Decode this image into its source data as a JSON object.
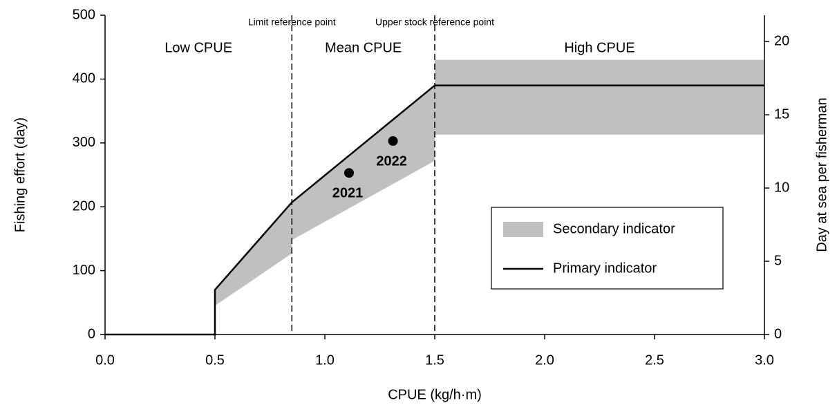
{
  "chart_data": {
    "type": "line",
    "x_label": "CPUE (kg/h·m)",
    "y_label": "Fishing effort (day)",
    "y2_label": "Day at sea per fisherman",
    "xlim": [
      0,
      3.0
    ],
    "xticks": [
      {
        "value": 0,
        "label": "0.0"
      },
      0.5,
      {
        "value": 1,
        "label": "1.0"
      },
      1.5,
      {
        "value": 2,
        "label": "2.0"
      },
      2.5,
      {
        "value": 3,
        "label": "3.0"
      }
    ],
    "ylim": [
      0,
      500
    ],
    "yticks": [
      0,
      100,
      200,
      300,
      400,
      500
    ],
    "y2lim": [
      0,
      21.8
    ],
    "y2ticks": [
      0,
      5,
      10,
      15,
      20
    ],
    "band": {
      "name": "Secondary indicator",
      "color": "#c0c0c0",
      "x": [
        0.5,
        0.85,
        0.85,
        1.5,
        1.5,
        3.0
      ],
      "lower": [
        45,
        127,
        148,
        272,
        313,
        313
      ],
      "upper": [
        70,
        207,
        207,
        390,
        430,
        430
      ]
    },
    "series": [
      {
        "name": "Primary indicator",
        "color": "#000000",
        "x": [
          0,
          0.5,
          0.5,
          0.85,
          1.5,
          3.0
        ],
        "values": [
          0,
          0,
          70,
          207,
          390,
          390
        ]
      }
    ],
    "points": {
      "x": [
        1.11,
        1.31
      ],
      "values": [
        253,
        303
      ],
      "labels": [
        "2021",
        "2022"
      ]
    },
    "reference_lines": [
      {
        "x": 0.85,
        "label": "Limit reference point"
      },
      {
        "x": 1.5,
        "label": "Upper stock reference point"
      }
    ],
    "regions": [
      {
        "label": "Low CPUE",
        "x": [
          0,
          0.85
        ]
      },
      {
        "label": "Mean CPUE",
        "x": [
          0.85,
          1.5
        ]
      },
      {
        "label": "High CPUE",
        "x": [
          1.5,
          3.0
        ]
      }
    ]
  }
}
